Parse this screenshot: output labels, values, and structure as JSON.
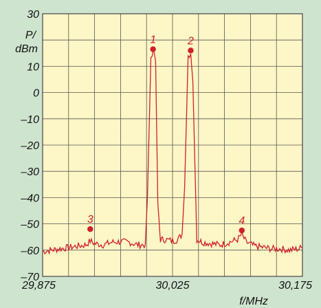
{
  "chart_data": {
    "type": "line",
    "xlabel": "f/MHz",
    "ylabel_line1": "P/",
    "ylabel_line2": "dBm",
    "xlim": [
      29.875,
      30.175
    ],
    "ylim": [
      -70,
      30
    ],
    "x_tick_labels": [
      {
        "value": 29.875,
        "label": "29,875"
      },
      {
        "value": 30.025,
        "label": "30,025"
      },
      {
        "value": 30.175,
        "label": "30,175"
      }
    ],
    "y_tick_labels": [
      {
        "value": 30,
        "label": "30"
      },
      {
        "value": 10,
        "label": "10"
      },
      {
        "value": 0,
        "label": "0"
      },
      {
        "value": -10,
        "label": "–10"
      },
      {
        "value": -20,
        "label": "–20"
      },
      {
        "value": -30,
        "label": "–30"
      },
      {
        "value": -40,
        "label": "–40"
      },
      {
        "value": -50,
        "label": "–50"
      },
      {
        "value": -60,
        "label": "–60"
      },
      {
        "value": -70,
        "label": "–70"
      }
    ],
    "grid": {
      "x_divisions": 10,
      "y_divisions": 10
    },
    "series": [
      {
        "color": "#d0202a",
        "x": [
          29.875,
          29.885,
          29.895,
          29.905,
          29.915,
          29.925,
          29.93,
          29.935,
          29.945,
          29.955,
          29.965,
          29.975,
          29.985,
          29.9935,
          29.996,
          30.0,
          30.003,
          30.0055,
          30.008,
          30.011,
          30.017,
          30.025,
          30.031,
          30.036,
          30.039,
          30.043,
          30.046,
          30.0485,
          30.053,
          30.06,
          30.07,
          30.08,
          30.09,
          30.1,
          30.105,
          30.11,
          30.12,
          30.13,
          30.14,
          30.15,
          30.16,
          30.17,
          30.175
        ],
        "y": [
          -60.5,
          -60,
          -59.5,
          -59,
          -58.5,
          -58,
          -56.5,
          -57.5,
          -58,
          -57,
          -56.8,
          -57,
          -58,
          -58,
          -40,
          12,
          16,
          12,
          -42,
          -56,
          -56,
          -56.5,
          -56,
          -54,
          -36,
          14,
          15,
          4,
          -56,
          -57,
          -57.5,
          -58,
          -57,
          -56,
          -54,
          -57,
          -58.5,
          -59,
          -59.5,
          -59.5,
          -60,
          -59.5,
          -59
        ]
      }
    ],
    "markers": [
      {
        "label": "1",
        "x": 30.0025,
        "y": 16.5
      },
      {
        "label": "2",
        "x": 30.046,
        "y": 16.0
      },
      {
        "label": "3",
        "x": 29.93,
        "y": -52.0
      },
      {
        "label": "4",
        "x": 30.105,
        "y": -52.5
      }
    ]
  }
}
